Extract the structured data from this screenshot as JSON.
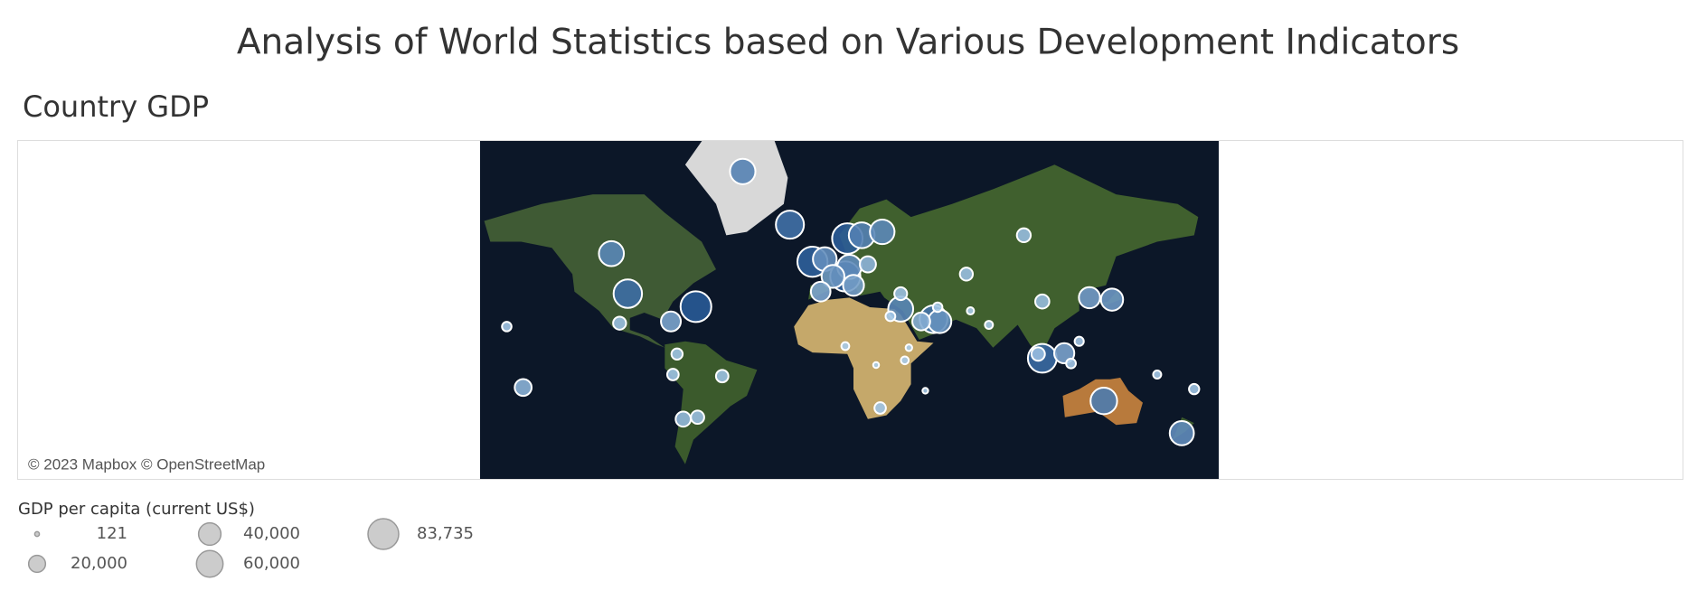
{
  "title": "Analysis of World  Statistics based on Various Development Indicators",
  "chart_data": {
    "type": "bubble-map",
    "title": "Country GDP",
    "attribution": "© 2023 Mapbox © OpenStreetMap",
    "size_legend": {
      "title": "GDP per capita (current US$)",
      "values": [
        121,
        {
          "value": 20000,
          "label": "20,000"
        },
        {
          "value": 40000,
          "label": "40,000"
        },
        {
          "value": 60000,
          "label": "60,000"
        },
        {
          "value": 83735,
          "label": "83,735"
        }
      ]
    },
    "points": [
      {
        "lon": -98,
        "lat": 39,
        "value": 70000
      },
      {
        "lon": -106,
        "lat": 56,
        "value": 52000
      },
      {
        "lon": -42,
        "lat": 76,
        "value": 54000
      },
      {
        "lon": -19,
        "lat": 65,
        "value": 68000
      },
      {
        "lon": -64.8,
        "lat": 32.3,
        "value": 83735
      },
      {
        "lon": -102,
        "lat": 23,
        "value": 10000
      },
      {
        "lon": -77,
        "lat": 24,
        "value": 30000
      },
      {
        "lon": -52,
        "lat": -10,
        "value": 8900
      },
      {
        "lon": -64,
        "lat": -34,
        "value": 10600
      },
      {
        "lon": -71,
        "lat": -35,
        "value": 15000
      },
      {
        "lon": -74,
        "lat": 4,
        "value": 6600
      },
      {
        "lon": -76,
        "lat": -9,
        "value": 7100
      },
      {
        "lon": 9,
        "lat": 61,
        "value": 82000
      },
      {
        "lon": -2,
        "lat": 54,
        "value": 46000
      },
      {
        "lon": 2,
        "lat": 47,
        "value": 42000
      },
      {
        "lon": 10,
        "lat": 51,
        "value": 48000
      },
      {
        "lon": -8,
        "lat": 53,
        "value": 80000
      },
      {
        "lon": 8,
        "lat": 47,
        "value": 80000
      },
      {
        "lon": 16,
        "lat": 62,
        "value": 56000
      },
      {
        "lon": 26,
        "lat": 63,
        "value": 50000
      },
      {
        "lon": 12,
        "lat": 43,
        "value": 34000
      },
      {
        "lon": -4,
        "lat": 40,
        "value": 29000
      },
      {
        "lon": 19,
        "lat": 52,
        "value": 18000
      },
      {
        "lon": 95,
        "lat": 62,
        "value": 12000
      },
      {
        "lon": 35,
        "lat": 39,
        "value": 9600
      },
      {
        "lon": 30,
        "lat": 27,
        "value": 4300
      },
      {
        "lon": 45,
        "lat": 24,
        "value": 23000
      },
      {
        "lon": 54,
        "lat": 24,
        "value": 44000
      },
      {
        "lon": 51,
        "lat": 25.3,
        "value": 66000
      },
      {
        "lon": 35,
        "lat": 31,
        "value": 52000
      },
      {
        "lon": 8,
        "lat": 9,
        "value": 2100
      },
      {
        "lon": 39,
        "lat": 8,
        "value": 1000
      },
      {
        "lon": 37,
        "lat": 0,
        "value": 2000
      },
      {
        "lon": 25,
        "lat": -29,
        "value": 7000
      },
      {
        "lon": 23,
        "lat": -3,
        "value": 580
      },
      {
        "lon": 47,
        "lat": -19,
        "value": 500
      },
      {
        "lon": 78,
        "lat": 22,
        "value": 2250
      },
      {
        "lon": 104,
        "lat": 35,
        "value": 12500
      },
      {
        "lon": 138,
        "lat": 36,
        "value": 39000
      },
      {
        "lon": 127,
        "lat": 37,
        "value": 35000
      },
      {
        "lon": 104,
        "lat": 1.3,
        "value": 72000
      },
      {
        "lon": 102,
        "lat": 4,
        "value": 11000
      },
      {
        "lon": 118,
        "lat": -2,
        "value": 4300
      },
      {
        "lon": 134,
        "lat": -25,
        "value": 60000
      },
      {
        "lon": 172,
        "lat": -42,
        "value": 48000
      },
      {
        "lon": 122,
        "lat": 12,
        "value": 3500
      },
      {
        "lon": 114.7,
        "lat": 4.5,
        "value": 31000
      },
      {
        "lon": 69,
        "lat": 30,
        "value": 1500
      },
      {
        "lon": 67,
        "lat": 48,
        "value": 10000
      },
      {
        "lon": 53,
        "lat": 32,
        "value": 4000
      },
      {
        "lon": -157,
        "lat": 21,
        "value": 4000
      },
      {
        "lon": -149,
        "lat": -17,
        "value": 20000
      },
      {
        "lon": 178,
        "lat": -18,
        "value": 5000
      },
      {
        "lon": 160,
        "lat": -9,
        "value": 2300
      }
    ]
  }
}
